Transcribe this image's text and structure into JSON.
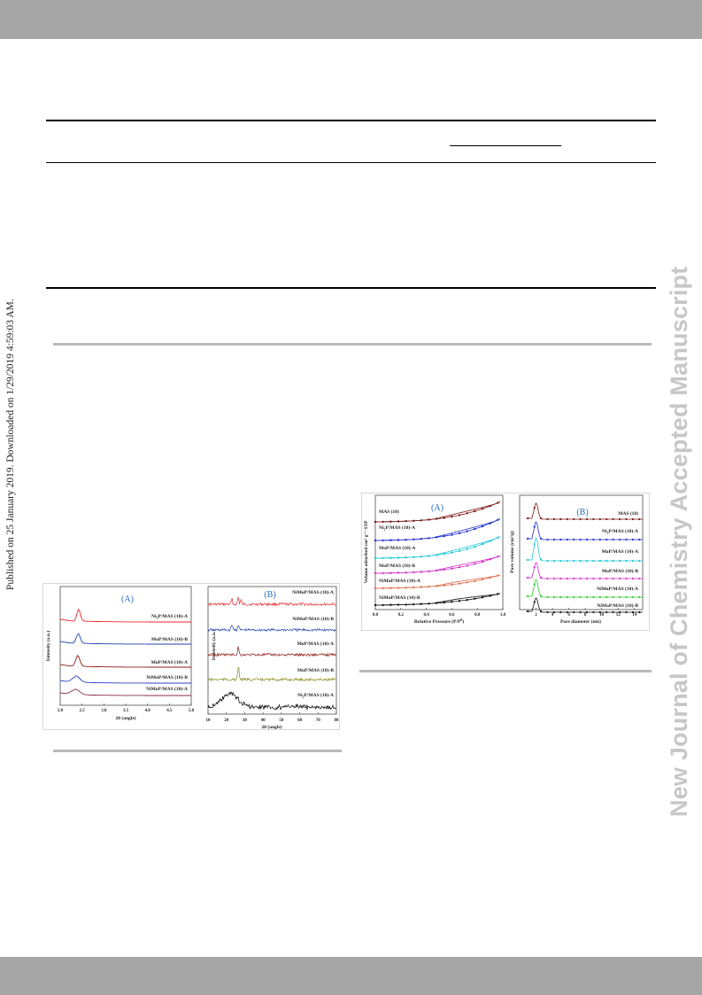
{
  "page": {
    "published_note": "Published on 25 January 2019. Downloaded on 1/29/2019 4:59:03 AM.",
    "watermark": "New Journal of Chemistry Accepted Manuscript",
    "colors": {
      "header_band": "#a6a6a6",
      "watermark": "#c7c7c7"
    }
  },
  "xrd_figure": {
    "panel_a": {
      "label": "(A)",
      "xlabel": "2θ (angle)",
      "ylabel": "Intensity (a.u.)",
      "xticks": [
        "2.0",
        "2.5",
        "3.0",
        "3.5",
        "4.0",
        "4.5",
        "5.0"
      ],
      "series": [
        {
          "name": "Ni2P/MAS (10)-A",
          "label_main": "Ni",
          "label_sub": "2",
          "label_rest": "P/MAS (10)-A",
          "color": "#e8262a"
        },
        {
          "name": "MoP/MAS (10)-B",
          "label_main": "MoP/MAS (10)-B",
          "label_sub": "",
          "label_rest": "",
          "color": "#1f3fb0"
        },
        {
          "name": "MoP/MAS (10)-A",
          "label_main": "MoP/MAS (10)-A",
          "label_sub": "",
          "label_rest": "",
          "color": "#8c1a12"
        },
        {
          "name": "NiMoP/MAS (10)-B",
          "label_main": "NiMoP/MAS (10)-B",
          "label_sub": "",
          "label_rest": "",
          "color": "#2740c8"
        },
        {
          "name": "NiMoP/MAS (10)-A",
          "label_main": "NiMoP/MAS (10)-A",
          "label_sub": "",
          "label_rest": "",
          "color": "#8a2a44"
        }
      ]
    },
    "panel_b": {
      "label": "(B)",
      "xlabel": "2θ (angle)",
      "ylabel": "Intensity (a.u.)",
      "xticks": [
        "10",
        "20",
        "30",
        "40",
        "50",
        "60",
        "70",
        "80"
      ],
      "series": [
        {
          "name": "NiMoP/MAS (10)-A",
          "label_main": "NiMoP/MAS (10)-A",
          "label_sub": "",
          "label_rest": "",
          "color": "#e8262a"
        },
        {
          "name": "NiMoP/MAS (10)-B",
          "label_main": "NiMoP/MAS (10)-B",
          "label_sub": "",
          "label_rest": "",
          "color": "#1f3fb0"
        },
        {
          "name": "MoP/MAS (10)-A",
          "label_main": "MoP/MAS (10)-A",
          "label_sub": "",
          "label_rest": "",
          "color": "#8c1a12"
        },
        {
          "name": "MoP/MAS (10)-B",
          "label_main": "MoP/MAS (10)-B",
          "label_sub": "",
          "label_rest": "",
          "color": "#8a8a1a"
        },
        {
          "name": "Ni2P/MAS (10)-A",
          "label_main": "Ni",
          "label_sub": "2",
          "label_rest": "P/MAS (10)-A",
          "color": "#000000"
        }
      ]
    }
  },
  "bet_figure": {
    "panel_a": {
      "label": "(A)",
      "xlabel_main": "Relative Pressure (P/P",
      "xlabel_sup": "0",
      "xlabel_end": ")",
      "ylabel": "Volume adsorbed cm³ g⁻¹ STP",
      "xticks": [
        "0.0",
        "0.2",
        "0.4",
        "0.6",
        "0.8",
        "1.0"
      ],
      "series": [
        {
          "name": "MAS (10)",
          "label_main": "MAS (10)",
          "label_sub": "",
          "label_rest": "",
          "color": "#7a1a16"
        },
        {
          "name": "Ni2P/MAS (10)-A",
          "label_main": "Ni",
          "label_sub": "2",
          "label_rest": "P/MAS (10)-A",
          "color": "#1f2fd0"
        },
        {
          "name": "MoP/MAS (10)-A",
          "label_main": "MoP/MAS (10)-A",
          "label_sub": "",
          "label_rest": "",
          "color": "#22c8d8"
        },
        {
          "name": "MoP/MAS (10)-B",
          "label_main": "MoP/MAS (10)-B",
          "label_sub": "",
          "label_rest": "",
          "color": "#d230c8"
        },
        {
          "name": "NiMoP/MAS (10)-A",
          "label_main": "NiMoP/MAS (10)-A",
          "label_sub": "",
          "label_rest": "",
          "color": "#e07050"
        },
        {
          "name": "NiMoP/MAS (10)-B",
          "label_main": "NiMoP/MAS (10)-B",
          "label_sub": "",
          "label_rest": "",
          "color": "#111111"
        }
      ]
    },
    "panel_b": {
      "label": "(B)",
      "xlabel": "Pore diameter (nm)",
      "ylabel": "Pore volume (cm³/g)",
      "xticks": [
        "2",
        "4",
        "6",
        "8",
        "10",
        "12",
        "14"
      ],
      "series": [
        {
          "name": "MAS (10)",
          "label_main": "MAS (10)",
          "label_sub": "",
          "label_rest": "",
          "color": "#7a1a16"
        },
        {
          "name": "Ni2P/MAS (10)-A",
          "label_main": "Ni",
          "label_sub": "2",
          "label_rest": "P/MAS (10)-A",
          "color": "#1f2fd0"
        },
        {
          "name": "MoP/MAS (10)-A",
          "label_main": "MoP/MAS (10)-A",
          "label_sub": "",
          "label_rest": "",
          "color": "#22c8d8"
        },
        {
          "name": "MoP/MAS (10)-B",
          "label_main": "MoP/MAS (10)-B",
          "label_sub": "",
          "label_rest": "",
          "color": "#d230c8"
        },
        {
          "name": "NiMoP/MAS (10)-A",
          "label_main": "NiMoP/MAS (10)-A",
          "label_sub": "",
          "label_rest": "",
          "color": "#33cc33"
        },
        {
          "name": "NiMoP/MAS (10)-B",
          "label_main": "NiMoP/MAS (10)-B",
          "label_sub": "",
          "label_rest": "",
          "color": "#111111"
        }
      ]
    }
  },
  "chart_data": [
    {
      "type": "line",
      "title": "(A)",
      "xlabel": "2θ (angle)",
      "ylabel": "Intensity (a.u.)",
      "xlim": [
        2.0,
        5.0
      ],
      "x_peak": 2.4,
      "series": [
        {
          "name": "Ni2P/MAS (10)-A",
          "peak_x": 2.42
        },
        {
          "name": "MoP/MAS (10)-B",
          "peak_x": 2.41
        },
        {
          "name": "MoP/MAS (10)-A",
          "peak_x": 2.4
        },
        {
          "name": "NiMoP/MAS (10)-B",
          "peak_x": 2.36
        },
        {
          "name": "NiMoP/MAS (10)-A",
          "peak_x": 2.34
        }
      ]
    },
    {
      "type": "line",
      "title": "(B)",
      "xlabel": "2θ (angle)",
      "ylabel": "Intensity (a.u.)",
      "xlim": [
        10,
        80
      ],
      "series": [
        {
          "name": "NiMoP/MAS (10)-A",
          "peaks_x": [
            23,
            26.5,
            28
          ]
        },
        {
          "name": "NiMoP/MAS (10)-B",
          "peaks_x": [
            23,
            26.5
          ]
        },
        {
          "name": "MoP/MAS (10)-A",
          "peaks_x": [
            26.5
          ]
        },
        {
          "name": "MoP/MAS (10)-B",
          "peaks_x": [
            26.6
          ]
        },
        {
          "name": "Ni2P/MAS (10)-A",
          "broad_hump_center_x": 22
        }
      ]
    },
    {
      "type": "line",
      "title": "(A)",
      "xlabel": "Relative Pressure (P/P0)",
      "ylabel": "Volume adsorbed cm3 g-1 STP",
      "xlim": [
        0.0,
        1.0
      ],
      "series": [
        {
          "name": "MAS (10)"
        },
        {
          "name": "Ni2P/MAS (10)-A"
        },
        {
          "name": "MoP/MAS (10)-A"
        },
        {
          "name": "MoP/MAS (10)-B"
        },
        {
          "name": "NiMoP/MAS (10)-A"
        },
        {
          "name": "NiMoP/MAS (10)-B"
        }
      ]
    },
    {
      "type": "line",
      "title": "(B)",
      "xlabel": "Pore diameter (nm)",
      "ylabel": "Pore volume (cm3/g)",
      "xlim": [
        0,
        15
      ],
      "series": [
        {
          "name": "MAS (10)",
          "peak_x": 2.0
        },
        {
          "name": "Ni2P/MAS (10)-A",
          "peak_x": 2.0
        },
        {
          "name": "MoP/MAS (10)-A",
          "peak_x": 2.0
        },
        {
          "name": "MoP/MAS (10)-B",
          "peak_x": 2.0
        },
        {
          "name": "NiMoP/MAS (10)-A",
          "peak_x": 2.0
        },
        {
          "name": "NiMoP/MAS (10)-B",
          "peak_x": 2.0
        }
      ]
    }
  ]
}
